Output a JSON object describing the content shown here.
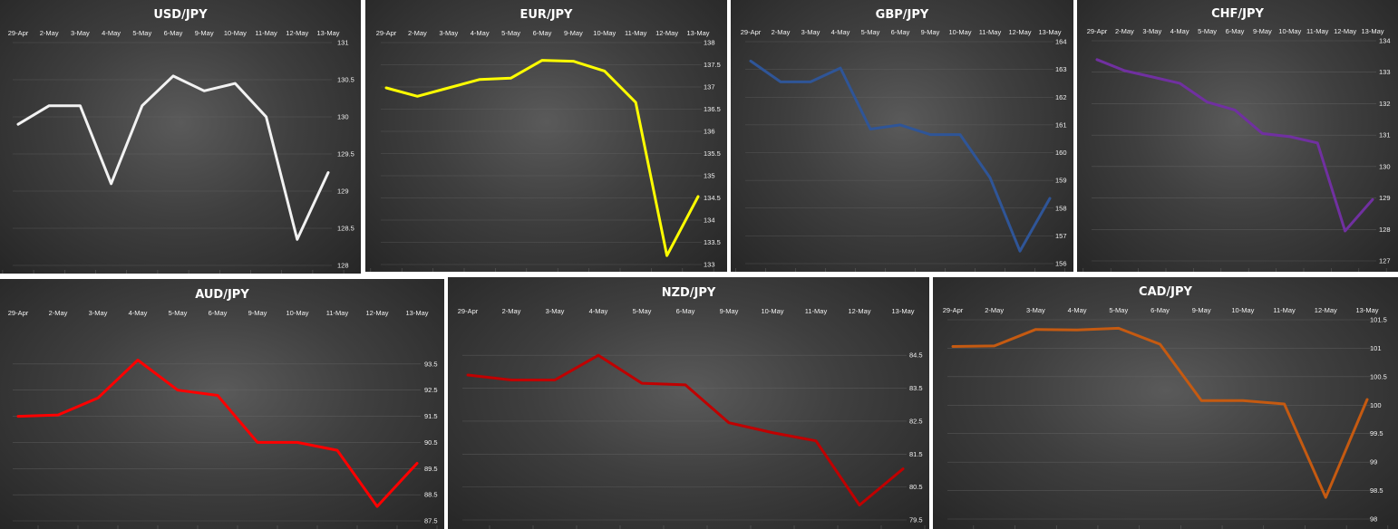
{
  "chart_data": [
    {
      "type": "line",
      "title": "USD/JPY",
      "categories": [
        "29-Apr",
        "2-May",
        "3-May",
        "4-May",
        "5-May",
        "6-May",
        "9-May",
        "10-May",
        "11-May",
        "12-May",
        "13-May"
      ],
      "y_ticks": [
        "131",
        "130.5",
        "130",
        "129.5",
        "129",
        "128.5",
        "128"
      ],
      "ylim": [
        128,
        131
      ],
      "values": [
        129.9,
        130.15,
        130.15,
        129.1,
        130.15,
        130.55,
        130.35,
        130.45,
        130.0,
        128.35,
        129.25
      ],
      "color": "#f2f2f2",
      "grid": true
    },
    {
      "type": "line",
      "title": "EUR/JPY",
      "categories": [
        "29-Apr",
        "2-May",
        "3-May",
        "4-May",
        "5-May",
        "6-May",
        "9-May",
        "10-May",
        "11-May",
        "12-May",
        "13-May"
      ],
      "y_ticks": [
        "138",
        "137.5",
        "137",
        "136.5",
        "136",
        "135.5",
        "135",
        "134.5",
        "134",
        "133.5",
        "133"
      ],
      "ylim": [
        133,
        138
      ],
      "values": [
        136.98,
        136.79,
        136.98,
        137.17,
        137.2,
        137.6,
        137.58,
        137.36,
        136.65,
        133.2,
        134.53
      ],
      "color": "#ffff00",
      "grid": true
    },
    {
      "type": "line",
      "title": "GBP/JPY",
      "categories": [
        "29-Apr",
        "2-May",
        "3-May",
        "4-May",
        "5-May",
        "6-May",
        "9-May",
        "10-May",
        "11-May",
        "12-May",
        "13-May"
      ],
      "y_ticks": [
        "164",
        "163",
        "162",
        "161",
        "160",
        "159",
        "158",
        "157",
        "156"
      ],
      "ylim": [
        156,
        164
      ],
      "values": [
        163.3,
        162.55,
        162.55,
        163.05,
        160.85,
        161.0,
        160.65,
        160.65,
        159.1,
        156.45,
        158.35
      ],
      "color": "#2f5597",
      "grid": true
    },
    {
      "type": "line",
      "title": "CHF/JPY",
      "categories": [
        "29-Apr",
        "2-May",
        "3-May",
        "4-May",
        "5-May",
        "6-May",
        "9-May",
        "10-May",
        "11-May",
        "12-May",
        "13-May"
      ],
      "y_ticks": [
        "134",
        "133",
        "132",
        "131",
        "130",
        "129",
        "128",
        "127"
      ],
      "ylim": [
        127,
        134
      ],
      "values": [
        133.4,
        133.05,
        132.85,
        132.65,
        132.05,
        131.8,
        131.05,
        130.95,
        130.75,
        127.95,
        128.95
      ],
      "color": "#7030a0",
      "grid": true
    },
    {
      "type": "line",
      "title": "AUD/JPY",
      "categories": [
        "29-Apr",
        "2-May",
        "3-May",
        "4-May",
        "5-May",
        "6-May",
        "9-May",
        "10-May",
        "11-May",
        "12-May",
        "13-May"
      ],
      "y_ticks": [
        "93.5",
        "92.5",
        "91.5",
        "90.5",
        "89.5",
        "88.5",
        "87.5"
      ],
      "ylim": [
        87.5,
        94.5
      ],
      "values": [
        91.5,
        91.55,
        92.2,
        93.65,
        92.5,
        92.3,
        90.5,
        90.5,
        90.2,
        88.05,
        89.7
      ],
      "color": "#ff0000",
      "grid": true
    },
    {
      "type": "line",
      "title": "NZD/JPY",
      "categories": [
        "29-Apr",
        "2-May",
        "3-May",
        "4-May",
        "5-May",
        "6-May",
        "9-May",
        "10-May",
        "11-May",
        "12-May",
        "13-May"
      ],
      "y_ticks": [
        "84.5",
        "83.5",
        "82.5",
        "81.5",
        "80.5",
        "79.5"
      ],
      "ylim": [
        79.5,
        85
      ],
      "values": [
        83.9,
        83.75,
        83.75,
        84.5,
        83.65,
        83.6,
        82.45,
        82.15,
        81.9,
        79.95,
        81.05
      ],
      "color": "#c00000",
      "grid": true
    },
    {
      "type": "line",
      "title": "CAD/JPY",
      "categories": [
        "29-Apr",
        "2-May",
        "3-May",
        "4-May",
        "5-May",
        "6-May",
        "9-May",
        "10-May",
        "11-May",
        "12-May",
        "13-May"
      ],
      "y_ticks": [
        "101.5",
        "101",
        "100.5",
        "100",
        "99.5",
        "99",
        "98.5",
        "98"
      ],
      "ylim": [
        98,
        101.5
      ],
      "values": [
        101.03,
        101.04,
        101.33,
        101.32,
        101.35,
        101.07,
        100.08,
        100.08,
        100.02,
        98.38,
        100.1
      ],
      "color": "#c55a11",
      "grid": true
    }
  ]
}
